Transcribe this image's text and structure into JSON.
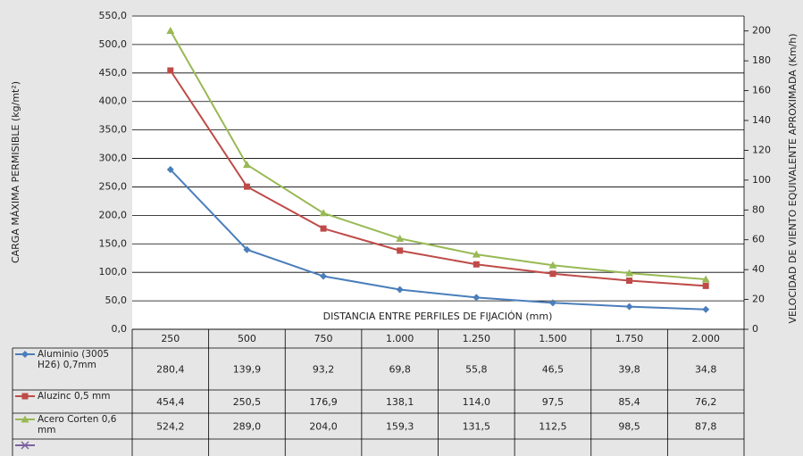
{
  "chart_data": {
    "type": "line",
    "y_label": "CARGA MÁXIMA PERMISIBLE (kg/mt²)",
    "y2_label": "VELOCIDAD DE VIENTO EQUIVALENTE APROXIMADA (Km/h)",
    "x_label": "DISTANCIA ENTRE PERFILES DE FIJACIÓN (mm)",
    "categories": [
      "250",
      "500",
      "750",
      "1.000",
      "1.250",
      "1.500",
      "1.750",
      "2.000"
    ],
    "series": [
      {
        "name": "Aluminio (3005 H26) 0,7mm",
        "color": "#4a7ebb",
        "marker": "diamond",
        "values": [
          280.4,
          139.9,
          93.2,
          69.8,
          55.8,
          46.5,
          39.8,
          34.8
        ],
        "value_labels": [
          "280,4",
          "139,9",
          "93,2",
          "69,8",
          "55,8",
          "46,5",
          "39,8",
          "34,8"
        ]
      },
      {
        "name": "Aluzinc 0,5 mm",
        "color": "#be4b48",
        "marker": "square",
        "values": [
          454.4,
          250.5,
          176.9,
          138.1,
          114.0,
          97.5,
          85.4,
          76.2
        ],
        "value_labels": [
          "454,4",
          "250,5",
          "176,9",
          "138,1",
          "114,0",
          "97,5",
          "85,4",
          "76,2"
        ]
      },
      {
        "name": "Acero Corten 0,6 mm",
        "color": "#98b954",
        "marker": "triangle",
        "values": [
          524.2,
          289.0,
          204.0,
          159.3,
          131.5,
          112.5,
          98.5,
          87.8
        ],
        "value_labels": [
          "524,2",
          "289,0",
          "204,0",
          "159,3",
          "131,5",
          "112,5",
          "98,5",
          "87,8"
        ]
      },
      {
        "color": "#7d60a0",
        "marker": "x",
        "values": [
          null,
          null,
          null,
          null,
          null,
          null,
          null,
          null
        ]
      }
    ],
    "ylim": [
      0,
      550
    ],
    "yticks": [
      {
        "value": 0,
        "label": "0,0"
      },
      {
        "value": 50,
        "label": "50,0"
      },
      {
        "value": 100,
        "label": "100,0"
      },
      {
        "value": 150,
        "label": "150,0"
      },
      {
        "value": 200,
        "label": "200,0"
      },
      {
        "value": 250,
        "label": "250,0"
      },
      {
        "value": 300,
        "label": "300,0"
      },
      {
        "value": 350,
        "label": "350,0"
      },
      {
        "value": 400,
        "label": "400,0"
      },
      {
        "value": 450,
        "label": "450,0"
      },
      {
        "value": 500,
        "label": "500,0"
      },
      {
        "value": 550,
        "label": "550,0"
      }
    ],
    "y2lim": [
      0,
      210
    ],
    "y2ticks": [
      0,
      20,
      40,
      60,
      80,
      100,
      120,
      140,
      160,
      180,
      200
    ],
    "grid": true
  }
}
